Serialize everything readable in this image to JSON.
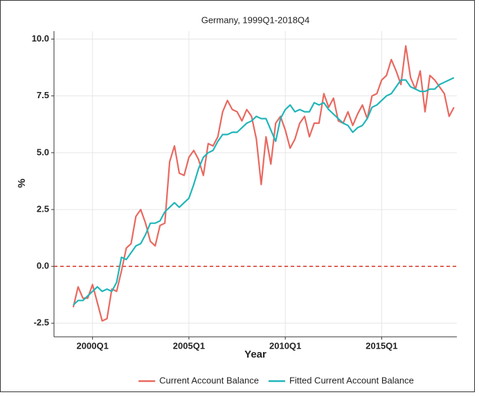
{
  "chart_data": {
    "type": "line",
    "title": "Germany, 1999Q1-2018Q4",
    "x_label": "Year",
    "y_label": "%",
    "x": [
      1999,
      1999.25,
      1999.5,
      1999.75,
      2000,
      2000.25,
      2000.5,
      2000.75,
      2001,
      2001.25,
      2001.5,
      2001.75,
      2002,
      2002.25,
      2002.5,
      2002.75,
      2003,
      2003.25,
      2003.5,
      2003.75,
      2004,
      2004.25,
      2004.5,
      2004.75,
      2005,
      2005.25,
      2005.5,
      2005.75,
      2006,
      2006.25,
      2006.5,
      2006.75,
      2007,
      2007.25,
      2007.5,
      2007.75,
      2008,
      2008.25,
      2008.5,
      2008.75,
      2009,
      2009.25,
      2009.5,
      2009.75,
      2010,
      2010.25,
      2010.5,
      2010.75,
      2011,
      2011.25,
      2011.5,
      2011.75,
      2012,
      2012.25,
      2012.5,
      2012.75,
      2013,
      2013.25,
      2013.5,
      2013.75,
      2014,
      2014.25,
      2014.5,
      2014.75,
      2015,
      2015.25,
      2015.5,
      2015.75,
      2016,
      2016.25,
      2016.5,
      2016.75,
      2017,
      2017.25,
      2017.5,
      2017.75,
      2018,
      2018.25,
      2018.5,
      2018.75
    ],
    "series": [
      {
        "name": "Current Account Balance",
        "color": "#e8685f",
        "values": [
          -1.8,
          -0.9,
          -1.4,
          -1.4,
          -0.8,
          -1.6,
          -2.4,
          -2.3,
          -1.0,
          -1.1,
          -0.2,
          0.8,
          1.0,
          2.2,
          2.5,
          1.9,
          1.1,
          0.9,
          1.8,
          1.9,
          4.6,
          5.3,
          4.1,
          4.0,
          4.8,
          5.1,
          4.7,
          4.0,
          5.4,
          5.3,
          5.7,
          6.8,
          7.3,
          6.9,
          6.8,
          6.4,
          6.9,
          6.6,
          5.6,
          3.6,
          5.7,
          4.5,
          6.3,
          6.6,
          6.0,
          5.2,
          5.6,
          6.3,
          6.6,
          5.7,
          6.3,
          6.3,
          7.6,
          7.0,
          7.4,
          6.4,
          6.3,
          6.8,
          6.2,
          6.7,
          7.1,
          6.5,
          7.5,
          7.6,
          8.2,
          8.4,
          9.1,
          8.6,
          8.0,
          9.7,
          8.3,
          7.8,
          8.6,
          6.8,
          8.4,
          8.2,
          7.9,
          7.6,
          6.6,
          7.0
        ]
      },
      {
        "name": "Fitted Current Account Balance",
        "color": "#1fb5b9",
        "values": [
          -1.7,
          -1.5,
          -1.5,
          -1.3,
          -1.1,
          -0.9,
          -1.1,
          -1.0,
          -1.1,
          -0.7,
          0.4,
          0.3,
          0.6,
          0.9,
          1.0,
          1.4,
          1.9,
          1.9,
          2.0,
          2.4,
          2.6,
          2.8,
          2.6,
          2.8,
          3.0,
          3.6,
          4.3,
          4.8,
          5.0,
          5.1,
          5.5,
          5.8,
          5.8,
          5.9,
          5.9,
          6.1,
          6.3,
          6.4,
          6.6,
          6.5,
          6.5,
          6.0,
          5.5,
          6.5,
          6.9,
          7.1,
          6.8,
          6.9,
          6.8,
          6.8,
          7.2,
          7.1,
          7.2,
          6.9,
          6.7,
          6.5,
          6.3,
          6.2,
          5.9,
          6.1,
          6.2,
          6.5,
          7.0,
          7.1,
          7.3,
          7.5,
          7.6,
          7.9,
          8.2,
          8.2,
          7.9,
          7.8,
          7.7,
          7.7,
          7.8,
          7.8,
          8.0,
          8.1,
          8.2,
          8.3
        ]
      }
    ],
    "xlim": [
      1998,
      2018.9
    ],
    "xticks": [
      {
        "value": 2000,
        "label": "2000Q1"
      },
      {
        "value": 2005,
        "label": "2005Q1"
      },
      {
        "value": 2010,
        "label": "2010Q1"
      },
      {
        "value": 2015,
        "label": "2015Q1"
      }
    ],
    "ylim": [
      -3.1,
      10.35
    ],
    "yticks": [
      {
        "value": -2.5,
        "label": "-2.5"
      },
      {
        "value": 0,
        "label": "0.0"
      },
      2.5,
      {
        "value": 5,
        "label": "5.0"
      },
      7.5,
      {
        "value": 10,
        "label": "10.0"
      }
    ],
    "hline": {
      "value": 0,
      "color": "#d7301f"
    },
    "grid": true,
    "legend": "bottom"
  }
}
